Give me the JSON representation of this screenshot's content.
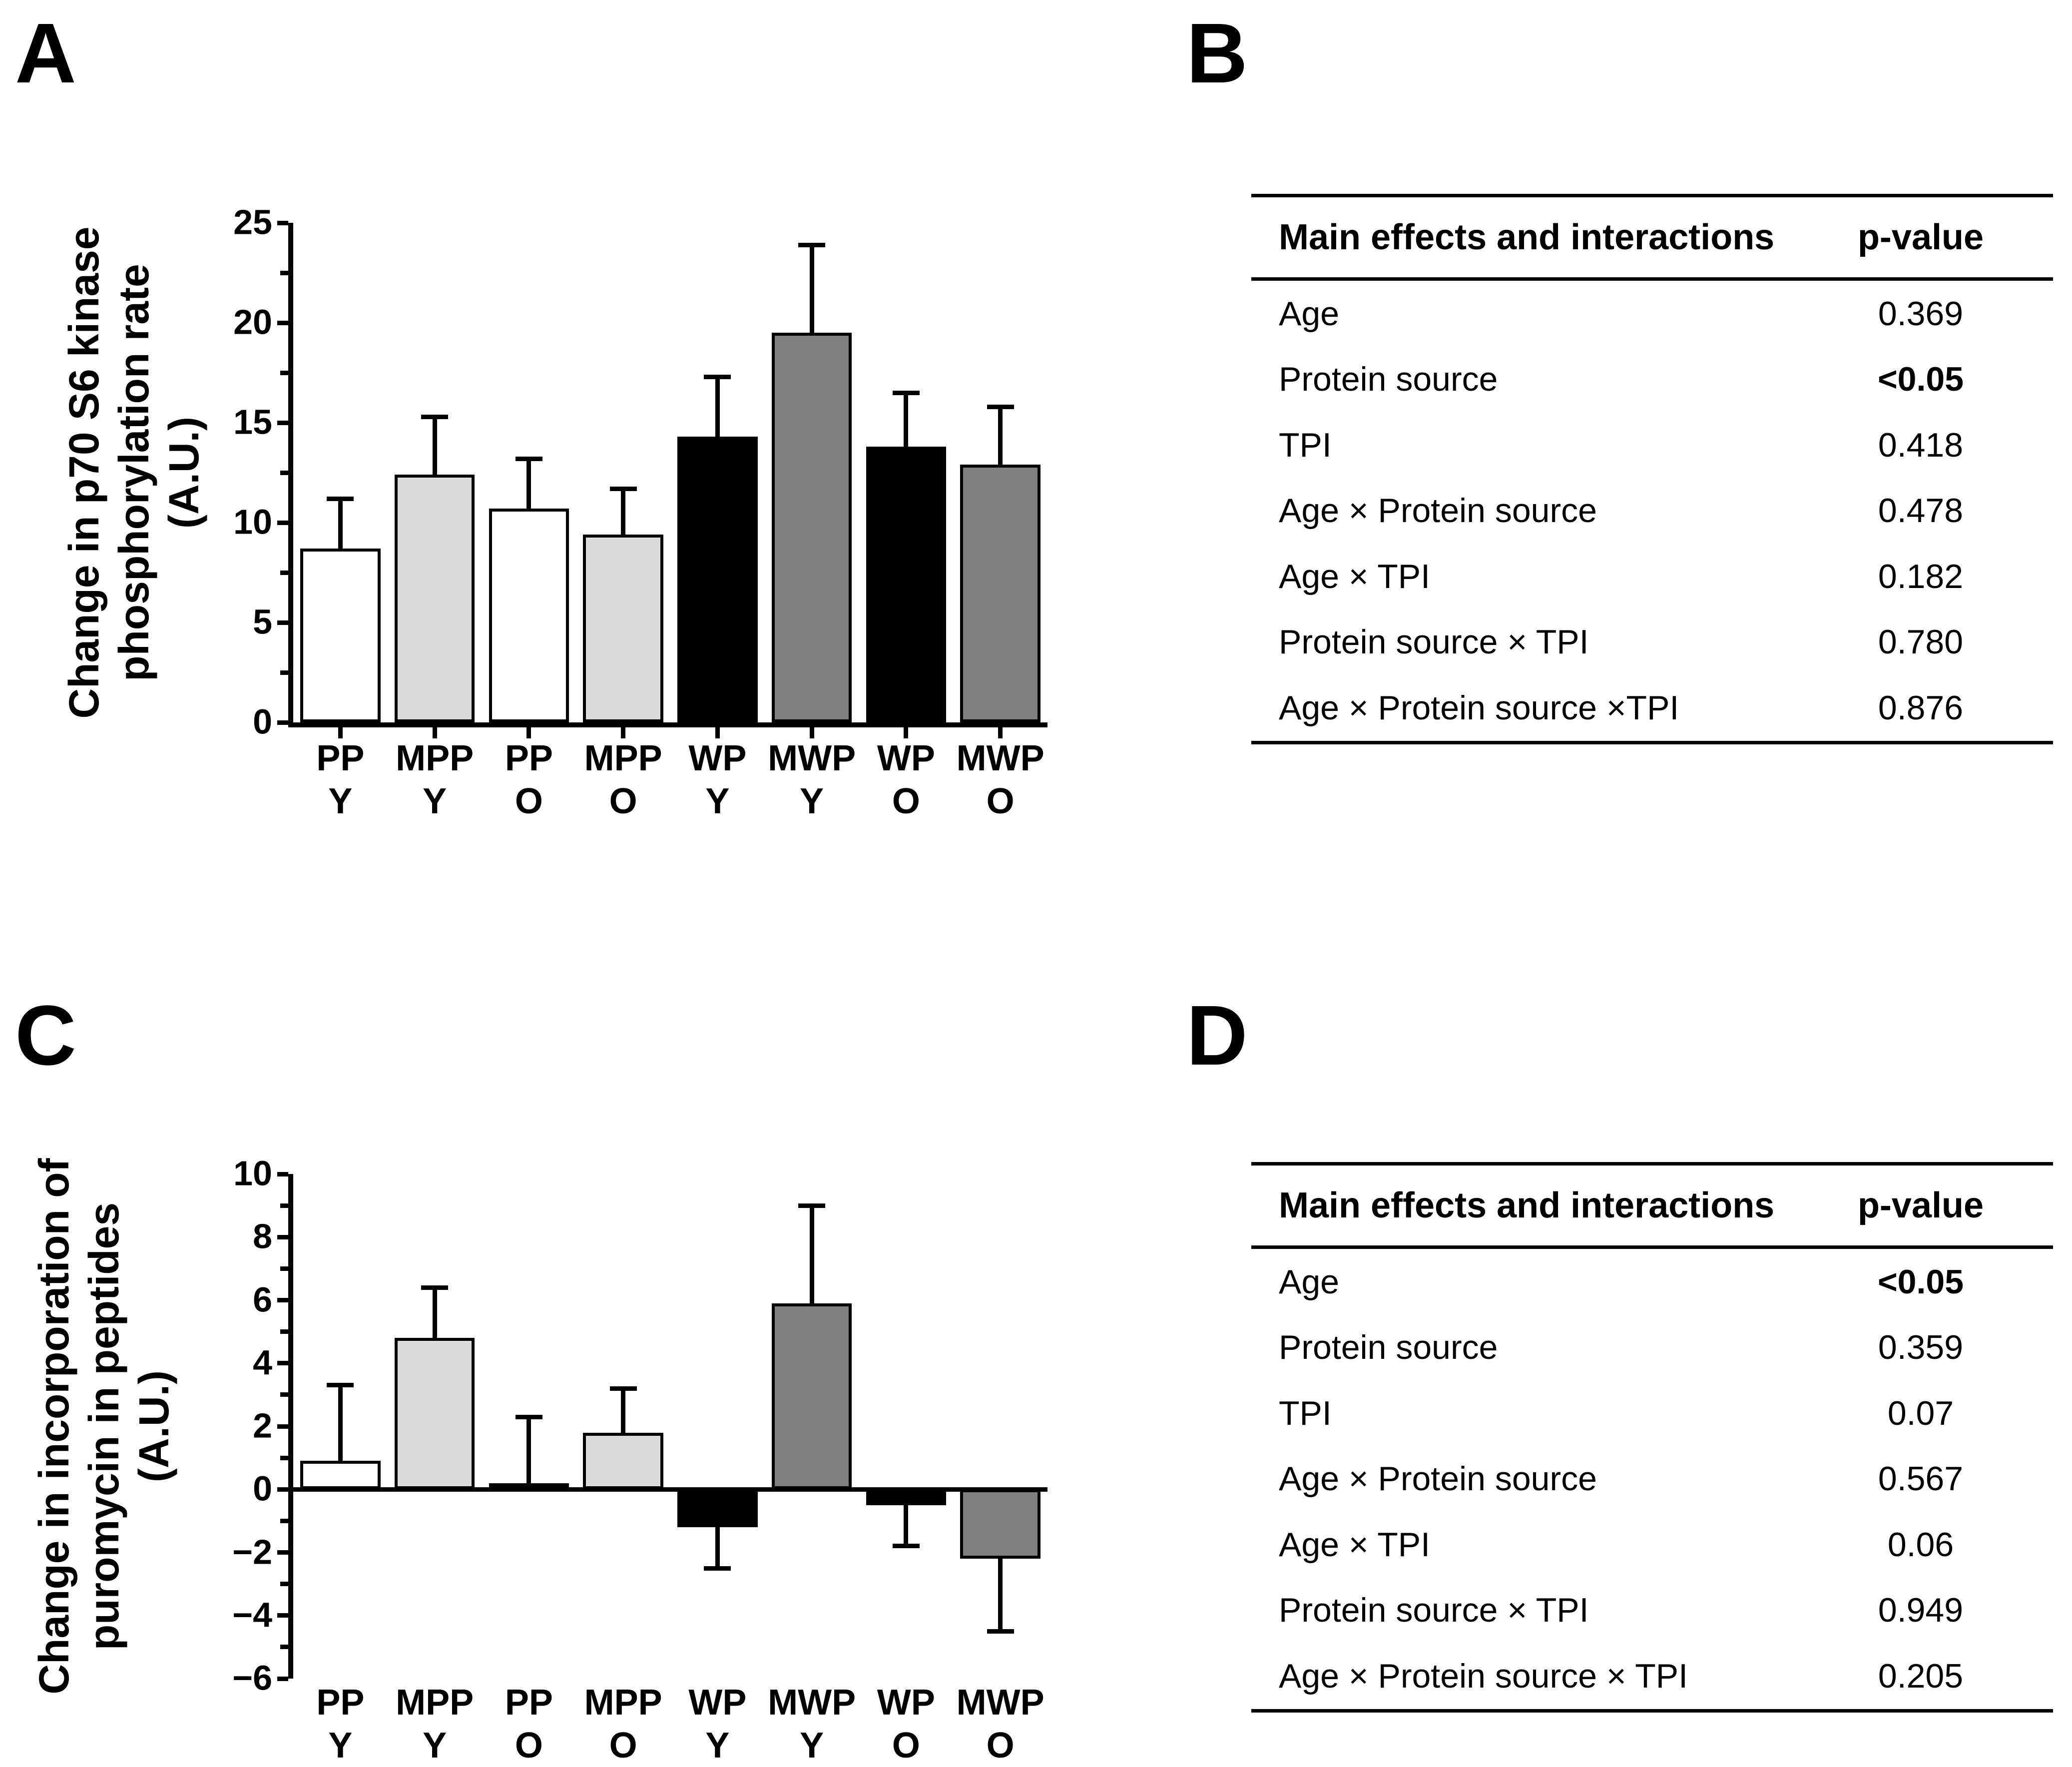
{
  "panels": {
    "a": {
      "letter": "A"
    },
    "b": {
      "letter": "B"
    },
    "c": {
      "letter": "C"
    },
    "d": {
      "letter": "D"
    }
  },
  "chart_data": [
    {
      "panel": "A",
      "type": "bar",
      "title": "",
      "xlabel": "",
      "ylabel_lines": [
        "Change in p70 S6 kinase",
        "phosphorylation rate",
        "(A.U.)"
      ],
      "categories": [
        {
          "top": "PP",
          "bottom": "Y"
        },
        {
          "top": "MPP",
          "bottom": "Y"
        },
        {
          "top": "PP",
          "bottom": "O"
        },
        {
          "top": "MPP",
          "bottom": "O"
        },
        {
          "top": "WP",
          "bottom": "Y"
        },
        {
          "top": "MWP",
          "bottom": "Y"
        },
        {
          "top": "WP",
          "bottom": "O"
        },
        {
          "top": "MWP",
          "bottom": "O"
        }
      ],
      "values": [
        8.7,
        12.4,
        10.7,
        9.4,
        14.3,
        19.5,
        13.8,
        12.9
      ],
      "errors": [
        2.5,
        2.9,
        2.5,
        2.3,
        3.0,
        4.4,
        2.7,
        2.9
      ],
      "error_direction": "one-sided (away from zero)",
      "bar_colors": [
        "#FFFFFF",
        "#DCDCDC",
        "#FFFFFF",
        "#DCDCDC",
        "#000000",
        "#808080",
        "#000000",
        "#808080"
      ],
      "ylim": [
        0,
        25
      ],
      "yticks": [
        {
          "v": 0,
          "label": "0"
        },
        {
          "v": 5,
          "label": "5"
        },
        {
          "v": 10,
          "label": "10"
        },
        {
          "v": 15,
          "label": "15"
        },
        {
          "v": 20,
          "label": "20"
        },
        {
          "v": 25,
          "label": "25"
        }
      ],
      "yticks_minor": [
        2.5,
        7.5,
        12.5,
        17.5,
        22.5
      ],
      "category_ticks": true,
      "grid": false,
      "legend": false
    },
    {
      "panel": "C",
      "type": "bar",
      "title": "",
      "xlabel": "",
      "ylabel_lines": [
        "Change in incorporation of",
        "puromycin in peptides",
        "(A.U.)"
      ],
      "categories": [
        {
          "top": "PP",
          "bottom": "Y"
        },
        {
          "top": "MPP",
          "bottom": "Y"
        },
        {
          "top": "PP",
          "bottom": "O"
        },
        {
          "top": "MPP",
          "bottom": "O"
        },
        {
          "top": "WP",
          "bottom": "Y"
        },
        {
          "top": "MWP",
          "bottom": "Y"
        },
        {
          "top": "WP",
          "bottom": "O"
        },
        {
          "top": "MWP",
          "bottom": "O"
        }
      ],
      "values": [
        0.9,
        4.8,
        0.2,
        1.8,
        -1.2,
        5.9,
        -0.5,
        -2.2
      ],
      "errors": [
        2.4,
        1.6,
        2.1,
        1.4,
        1.3,
        3.1,
        1.3,
        2.3
      ],
      "error_direction": "one-sided (away from zero)",
      "bar_colors": [
        "#FFFFFF",
        "#DCDCDC",
        "#FFFFFF",
        "#DCDCDC",
        "#000000",
        "#808080",
        "#000000",
        "#808080"
      ],
      "ylim": [
        -6,
        10
      ],
      "yticks": [
        {
          "v": -6,
          "label": "−6"
        },
        {
          "v": -4,
          "label": "−4"
        },
        {
          "v": -2,
          "label": "−2"
        },
        {
          "v": 0,
          "label": "0"
        },
        {
          "v": 2,
          "label": "2"
        },
        {
          "v": 4,
          "label": "4"
        },
        {
          "v": 6,
          "label": "6"
        },
        {
          "v": 8,
          "label": "8"
        },
        {
          "v": 10,
          "label": "10"
        }
      ],
      "yticks_minor": [
        -5,
        -3,
        -1,
        1,
        3,
        5,
        7,
        9
      ],
      "category_ticks": false,
      "grid": false,
      "legend": false
    }
  ],
  "tables": {
    "b": {
      "headers": [
        "Main effects and interactions",
        "p-value"
      ],
      "rows": [
        {
          "label": "Age",
          "p": "0.369",
          "bold": false
        },
        {
          "label": "Protein source",
          "p": "<0.05",
          "bold": true
        },
        {
          "label": "TPI",
          "p": "0.418",
          "bold": false
        },
        {
          "label": "Age × Protein source",
          "p": "0.478",
          "bold": false
        },
        {
          "label": "Age × TPI",
          "p": "0.182",
          "bold": false
        },
        {
          "label": "Protein source × TPI",
          "p": "0.780",
          "bold": false
        },
        {
          "label": "Age × Protein source ×TPI",
          "p": "0.876",
          "bold": false
        }
      ]
    },
    "d": {
      "headers": [
        "Main effects and interactions",
        "p-value"
      ],
      "rows": [
        {
          "label": "Age",
          "p": "<0.05",
          "bold": true
        },
        {
          "label": "Protein source",
          "p": "0.359",
          "bold": false
        },
        {
          "label": "TPI",
          "p": "0.07",
          "bold": false
        },
        {
          "label": "Age × Protein source",
          "p": "0.567",
          "bold": false
        },
        {
          "label": "Age × TPI",
          "p": "0.06",
          "bold": false
        },
        {
          "label": "Protein source × TPI",
          "p": "0.949",
          "bold": false
        },
        {
          "label": "Age × Protein source × TPI",
          "p": "0.205",
          "bold": false
        }
      ]
    }
  }
}
